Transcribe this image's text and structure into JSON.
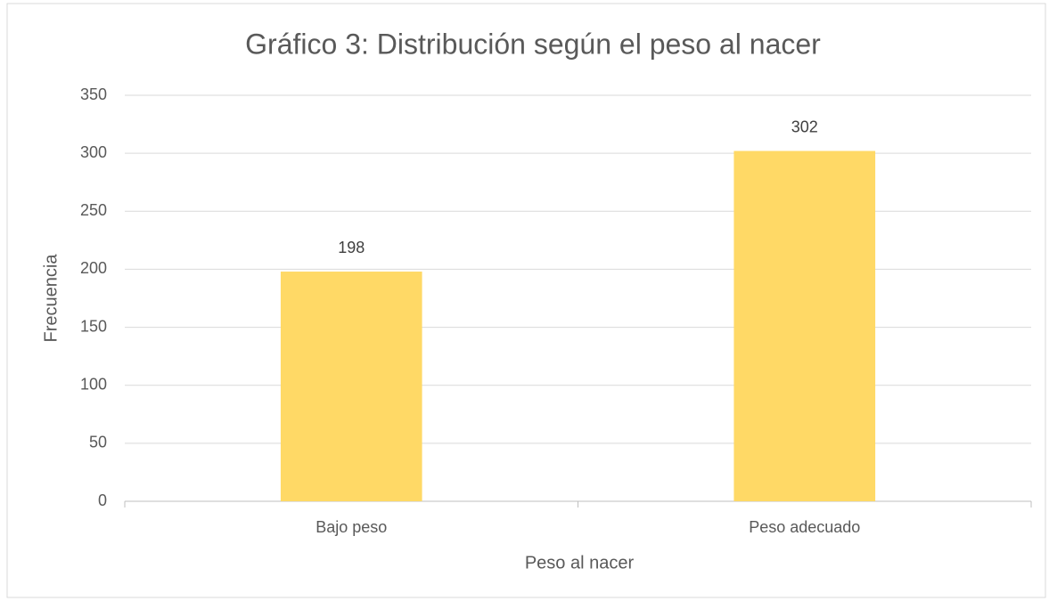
{
  "chart_data": {
    "type": "bar",
    "title": "Gráfico 3: Distribución según el peso al nacer",
    "x_label": "Peso al nacer",
    "y_label": "Frecuencia",
    "categories": [
      "Bajo peso",
      "Peso adecuado"
    ],
    "values": [
      198,
      302
    ],
    "color": "#ffd966",
    "ylim": [
      0,
      350
    ],
    "yticks": [
      0,
      50,
      100,
      150,
      200,
      250,
      300,
      350
    ],
    "grid": true
  }
}
